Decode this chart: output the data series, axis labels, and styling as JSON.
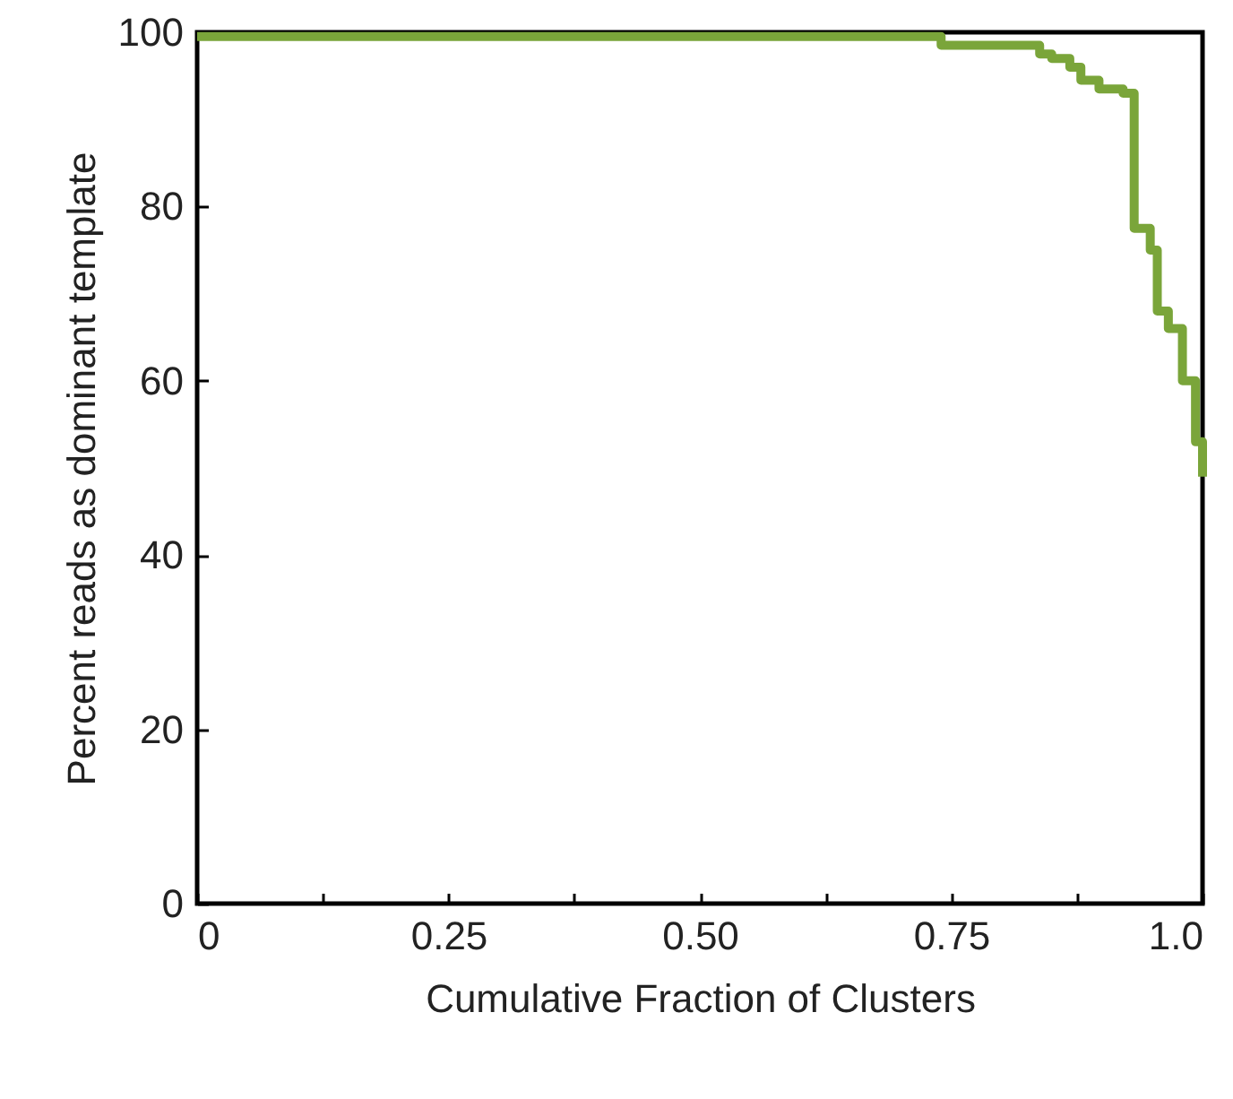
{
  "chart_data": {
    "type": "step",
    "xlabel": "Cumulative Fraction of Clusters",
    "ylabel": "Percent reads as dominant template",
    "x": [
      0,
      0.74,
      0.838,
      0.85,
      0.868,
      0.879,
      0.897,
      0.921,
      0.932,
      0.948,
      0.955,
      0.966,
      0.98,
      0.993,
      1.0
    ],
    "series": [
      {
        "color": "#7aa53a",
        "values": [
          99.5,
          98.5,
          97.5,
          97,
          96,
          94.5,
          93.5,
          93,
          77.5,
          75,
          68,
          66,
          60,
          53,
          49
        ]
      }
    ],
    "xlim": [
      0,
      1
    ],
    "xticks": [
      0,
      {
        "value": 0.125,
        "label": null
      },
      0.25,
      {
        "value": 0.375,
        "label": null
      },
      {
        "value": 0.5,
        "label": "0.50"
      },
      {
        "value": 0.625,
        "label": null
      },
      0.75,
      {
        "value": 0.875,
        "label": null
      },
      {
        "value": 1,
        "label": "1.0"
      }
    ],
    "ylim": [
      0,
      100
    ],
    "yticks": [
      0,
      20,
      40,
      60,
      80,
      100
    ],
    "grid": false,
    "marker": "none",
    "line_style": "solid"
  }
}
